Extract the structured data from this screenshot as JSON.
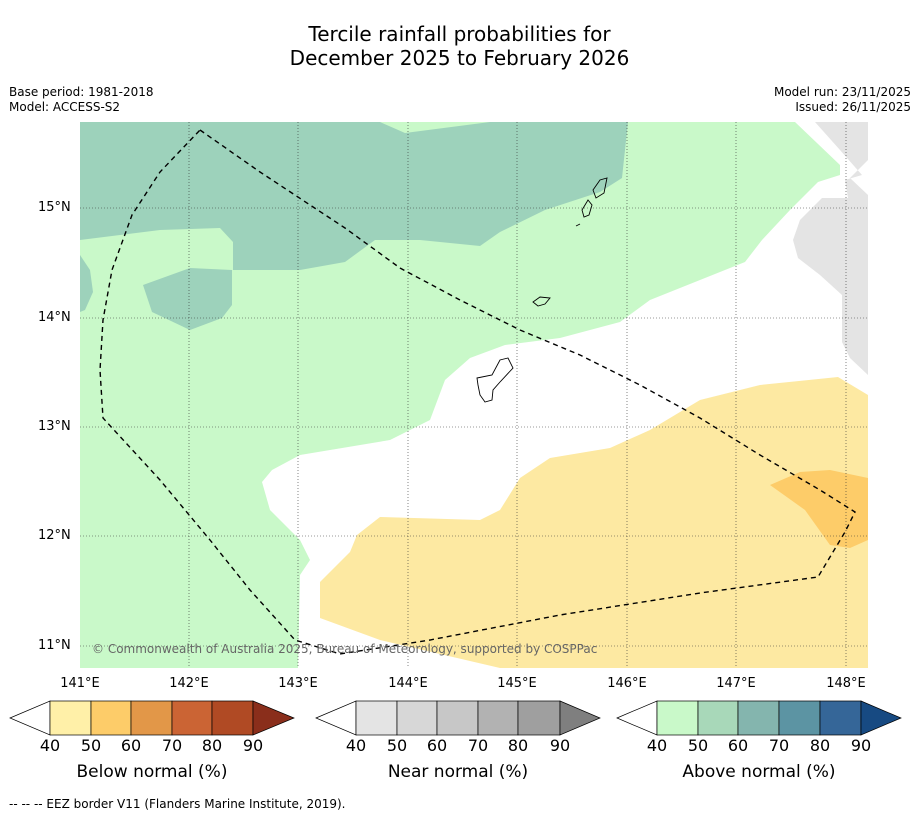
{
  "title_line1": "Tercile rainfall probabilities for",
  "title_line2": "December 2025 to February 2026",
  "base_period": "Base period: 1981-2018",
  "model": "Model: ACCESS-S2",
  "model_run": "Model run: 23/11/2025",
  "issued": "Issued: 26/11/2025",
  "copyright": "© Commonwealth of Australia 2025, Bureau of Meteorology, supported by COSPPac",
  "lat_labels": [
    "15°N",
    "14°N",
    "13°N",
    "12°N",
    "11°N"
  ],
  "lon_labels": [
    "141°E",
    "142°E",
    "143°E",
    "144°E",
    "145°E",
    "146°E",
    "147°E",
    "148°E"
  ],
  "colorbars": [
    {
      "title": "Below normal (%)",
      "ticks": [
        "40",
        "50",
        "60",
        "70",
        "80",
        "90"
      ],
      "colors": [
        "#fff0a8",
        "#fdcc69",
        "#e29748",
        "#cb6434",
        "#b04a24",
        "#8a2e1b"
      ]
    },
    {
      "title": "Near normal (%)",
      "ticks": [
        "40",
        "50",
        "60",
        "70",
        "80",
        "90"
      ],
      "colors": [
        "#e4e4e4",
        "#d7d7d7",
        "#c7c7c7",
        "#b2b2b2",
        "#9f9f9f",
        "#7f7f7f"
      ]
    },
    {
      "title": "Above normal (%)",
      "ticks": [
        "40",
        "50",
        "60",
        "70",
        "80",
        "90"
      ],
      "colors": [
        "#c9f9c9",
        "#a8d8b9",
        "#84b5ae",
        "#5c94a3",
        "#356698",
        "#174a82"
      ]
    }
  ],
  "footnote": "--  --  -- EEZ border V11 (Flanders Marine Institute, 2019).",
  "colors": {
    "above_40": "#c9f9c9",
    "above_50": "#9dd2bb",
    "below_40": "#fde9a2",
    "below_50": "#fdcc69",
    "near_40": "#e4e4e4"
  }
}
